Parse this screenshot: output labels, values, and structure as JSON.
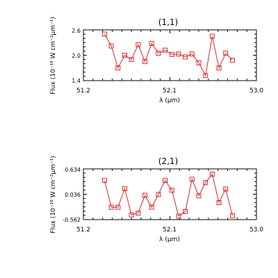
{
  "colors": {
    "series": "#d62728",
    "axes": "#000000",
    "background": "#ffffff"
  },
  "chart_data": [
    {
      "type": "line",
      "title": "(1,1)",
      "xlabel": "λ (μm)",
      "ylabel": "Flux (10⁻¹⁸ W cm⁻²μm⁻¹)",
      "xlim": [
        51.2,
        53.0
      ],
      "ylim": [
        1.4,
        2.6
      ],
      "xticks": [
        "51.2",
        "52.1",
        "53.0"
      ],
      "yticks": [
        "1.4",
        "2.0",
        "2.6"
      ],
      "grid": false,
      "marker": "square",
      "x": [
        51.42,
        51.49,
        51.56,
        51.63,
        51.7,
        51.77,
        51.84,
        51.91,
        51.98,
        52.05,
        52.12,
        52.19,
        52.26,
        52.33,
        52.4,
        52.47,
        52.54,
        52.61,
        52.68,
        52.75
      ],
      "values": [
        2.5,
        2.22,
        1.7,
        2.0,
        1.9,
        2.25,
        1.85,
        2.28,
        2.05,
        2.12,
        2.02,
        2.03,
        1.96,
        2.03,
        1.82,
        1.52,
        2.45,
        1.7,
        2.05,
        1.88
      ]
    },
    {
      "type": "line",
      "title": "(2,1)",
      "xlabel": "λ (μm)",
      "ylabel": "Flux (10⁻¹⁸ W cm⁻²μm⁻¹)",
      "xlim": [
        51.2,
        53.0
      ],
      "ylim": [
        -0.562,
        0.634
      ],
      "xticks": [
        "51.2",
        "52.1",
        "53.0"
      ],
      "yticks": [
        "-0.562",
        "0.036",
        "0.634"
      ],
      "grid": false,
      "marker": "square",
      "x": [
        51.42,
        51.49,
        51.56,
        51.63,
        51.7,
        51.77,
        51.84,
        51.91,
        51.98,
        52.05,
        52.12,
        52.19,
        52.26,
        52.33,
        52.4,
        52.47,
        52.54,
        52.61,
        52.68,
        52.75
      ],
      "values": [
        0.36,
        -0.27,
        -0.27,
        0.17,
        -0.45,
        -0.41,
        0.01,
        -0.27,
        0.03,
        0.36,
        0.13,
        -0.48,
        -0.37,
        0.39,
        0.0,
        0.31,
        0.51,
        -0.16,
        0.16,
        -0.47
      ]
    }
  ]
}
